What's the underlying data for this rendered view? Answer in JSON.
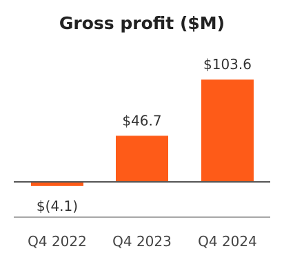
{
  "colors": {
    "bar": "#fe5b18",
    "zero_line": "#555555",
    "axis_line": "#8a8a8a",
    "title": "#222222",
    "text": "#333333"
  },
  "chart_data": {
    "type": "bar",
    "title": "Gross profit ($M)",
    "xlabel": "",
    "ylabel": "",
    "categories": [
      "Q4 2022",
      "Q4 2023",
      "Q4 2024"
    ],
    "values": [
      -4.1,
      46.7,
      103.6
    ],
    "value_labels": [
      "$(4.1)",
      "$46.7",
      "$103.6"
    ],
    "ylim": [
      -8,
      110
    ],
    "grid": false,
    "legend": "none"
  }
}
